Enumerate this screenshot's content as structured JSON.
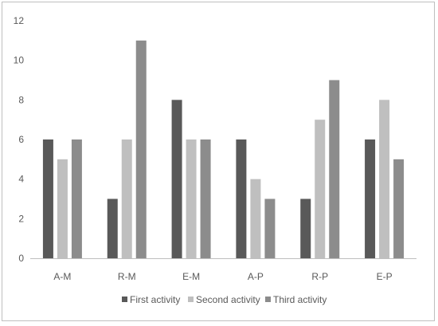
{
  "chart_data": {
    "type": "bar",
    "categories": [
      "A-M",
      "R-M",
      "E-M",
      "A-P",
      "R-P",
      "E-P"
    ],
    "series": [
      {
        "name": "First activity",
        "color": "#595959",
        "values": [
          6,
          3,
          8,
          6,
          3,
          6
        ]
      },
      {
        "name": "Second activity",
        "color": "#bfbfbf",
        "values": [
          5,
          6,
          6,
          4,
          7,
          8
        ]
      },
      {
        "name": "Third activity",
        "color": "#8c8c8c",
        "values": [
          6,
          11,
          6,
          3,
          9,
          5
        ]
      }
    ],
    "yticks": [
      "0",
      "2",
      "4",
      "6",
      "8",
      "10",
      "12"
    ],
    "ylim": [
      0,
      12
    ],
    "grid": false,
    "legend_position": "bottom",
    "title": "",
    "xlabel": "",
    "ylabel": ""
  }
}
